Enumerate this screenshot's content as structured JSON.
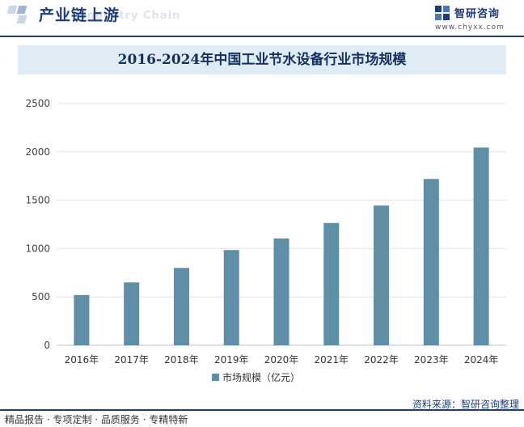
{
  "header": {
    "section_title": "产业链上游",
    "ghost_text": "Industry Chain",
    "logo_name": "智研咨询",
    "logo_url": "www.chyxx.com"
  },
  "watermark": "智研咨询",
  "footer": {
    "left_text": "精品报告 · 专项定制 · 品质服务 · 专精特新",
    "source_text": "资料来源：智研咨询整理"
  },
  "colors": {
    "bar": "#5f8fa6",
    "brand": "#1d3d7a",
    "title_bg": "#dfecf6"
  },
  "chart_data": {
    "type": "bar",
    "title": "2016-2024年中国工业节水设备行业市场规模",
    "categories": [
      "2016年",
      "2017年",
      "2018年",
      "2019年",
      "2020年",
      "2021年",
      "2022年",
      "2023年",
      "2024年"
    ],
    "series": [
      {
        "name": "市场规模（亿元）",
        "values": [
          520,
          650,
          800,
          985,
          1105,
          1265,
          1445,
          1720,
          2045
        ]
      }
    ],
    "ylim": [
      0,
      2500
    ],
    "yticks": [
      0,
      500,
      1000,
      1500,
      2000,
      2500
    ],
    "grid": true,
    "legend_position": "bottom"
  }
}
